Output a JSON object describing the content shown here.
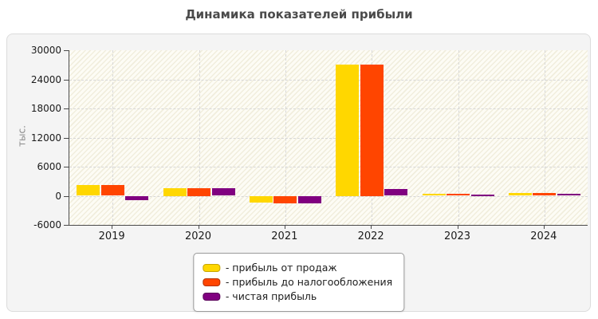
{
  "title": "Динамика показателей прибыли",
  "chart_data": {
    "type": "bar",
    "categories": [
      "2019",
      "2020",
      "2021",
      "2022",
      "2023",
      "2024"
    ],
    "series": [
      {
        "name": "- прибыль от продаж",
        "color": "#FFD700",
        "swatch_border": "#C7A500",
        "values": [
          2200,
          1500,
          -1400,
          27000,
          400,
          550
        ]
      },
      {
        "name": "- прибыль до налогообложения",
        "color": "#FF4500",
        "swatch_border": "#B33000",
        "values": [
          2200,
          1500,
          -1500,
          27000,
          450,
          600
        ]
      },
      {
        "name": "- чистая прибыль",
        "color": "#800080",
        "swatch_border": "#590059",
        "values": [
          -850,
          1600,
          -1600,
          1450,
          250,
          350
        ]
      }
    ],
    "ylabel": "тыс.",
    "ylim": [
      -6000,
      30000
    ],
    "yticks": [
      30000,
      24000,
      18000,
      12000,
      6000,
      0,
      -6000
    ],
    "grid": "dashed-horizontal-and-vertical",
    "legend_position": "bottom-center",
    "plot_background": "diagonal-hatch",
    "panel_background": "#f4f4f4"
  }
}
